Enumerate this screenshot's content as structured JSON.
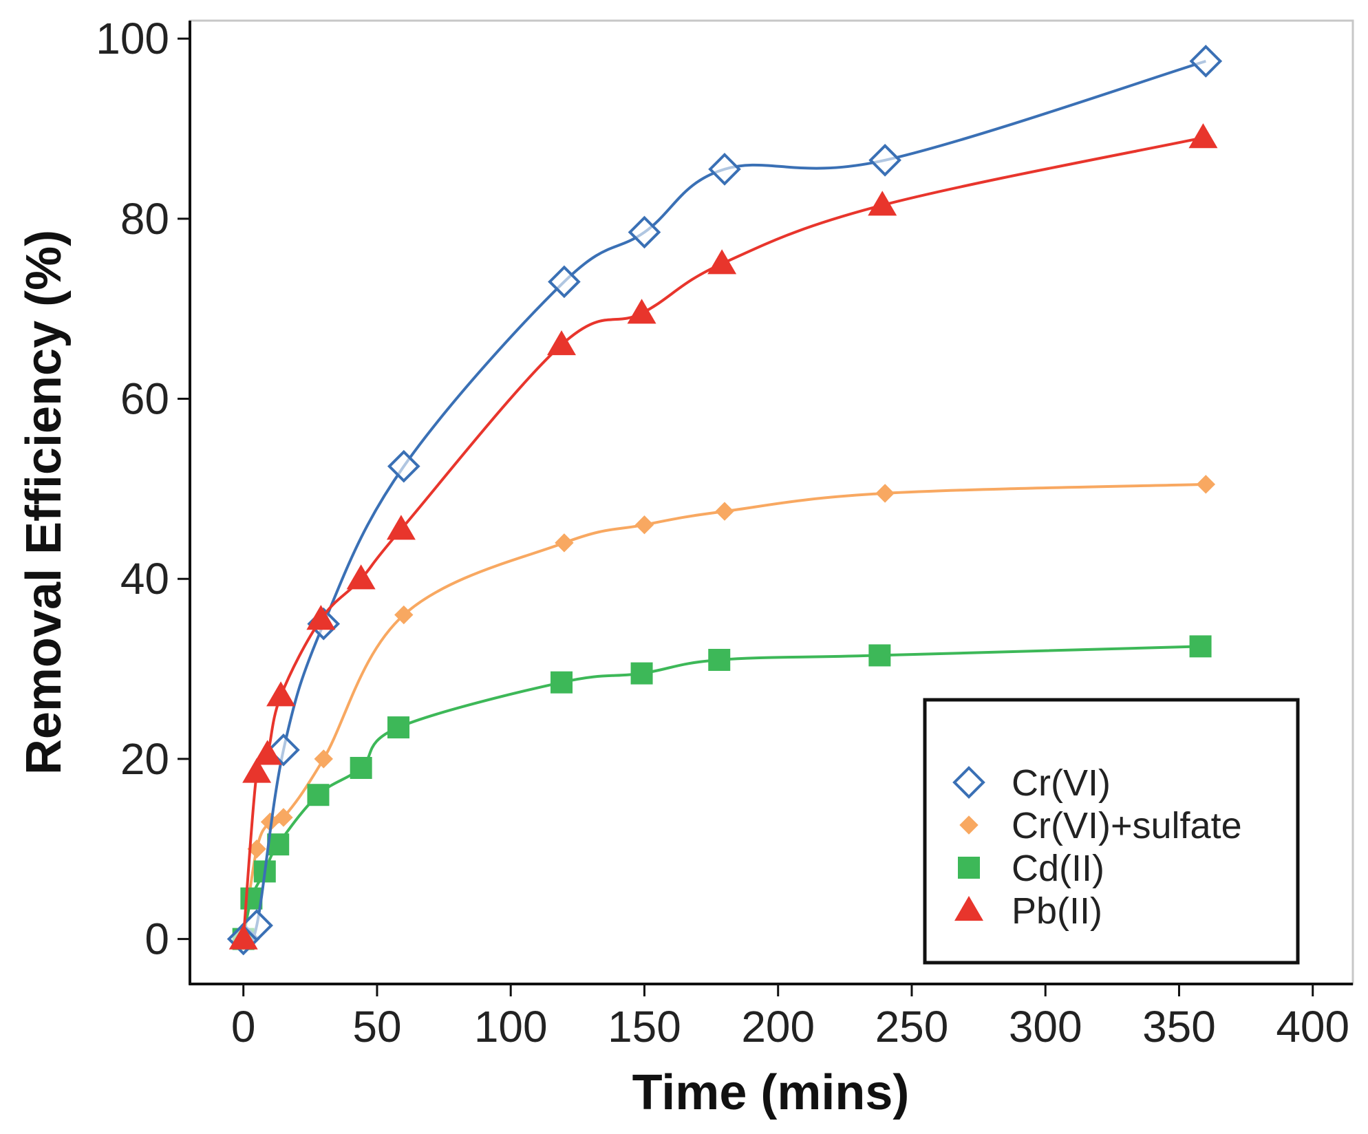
{
  "chart_data": {
    "type": "line",
    "title": "",
    "xlabel": "Time (mins)",
    "ylabel": "Removal Efficiency (%)",
    "xlim": [
      -20,
      415
    ],
    "ylim": [
      -5,
      102
    ],
    "xticks": [
      0,
      50,
      100,
      150,
      200,
      250,
      300,
      350,
      400
    ],
    "yticks": [
      0,
      20,
      40,
      60,
      80,
      100
    ],
    "grid": false,
    "legend_position": "bottom-right",
    "series": [
      {
        "name": "Cr(VI)",
        "color": "#3a70b5",
        "marker": "diamond-open",
        "x": [
          0,
          5,
          15,
          30,
          60,
          120,
          150,
          180,
          240,
          360
        ],
        "y": [
          0,
          1.5,
          21,
          35,
          52.5,
          73,
          78.5,
          85.5,
          86.5,
          97.5
        ]
      },
      {
        "name": "Cr(VI)+sulfate",
        "color": "#f8a861",
        "marker": "diamond-filled",
        "x": [
          0,
          5,
          10,
          15,
          30,
          60,
          120,
          150,
          180,
          240,
          360
        ],
        "y": [
          0,
          10,
          13,
          13.5,
          20,
          36,
          44,
          46,
          47.5,
          49.5,
          50.5
        ]
      },
      {
        "name": "Cd(II)",
        "color": "#3db858",
        "marker": "square",
        "x": [
          0,
          3,
          8,
          13,
          28,
          44,
          58,
          119,
          149,
          178,
          238,
          358
        ],
        "y": [
          0,
          4.5,
          7.5,
          10.5,
          16,
          19,
          23.5,
          28.5,
          29.5,
          31,
          31.5,
          32.5
        ]
      },
      {
        "name": "Pb(II)",
        "color": "#e8352c",
        "marker": "triangle",
        "x": [
          0,
          5,
          9,
          14,
          29,
          44,
          59,
          119,
          149,
          179,
          239,
          359
        ],
        "y": [
          0,
          18.5,
          20.5,
          27,
          35.5,
          40,
          45.5,
          66,
          69.5,
          75,
          81.5,
          89
        ]
      }
    ]
  }
}
